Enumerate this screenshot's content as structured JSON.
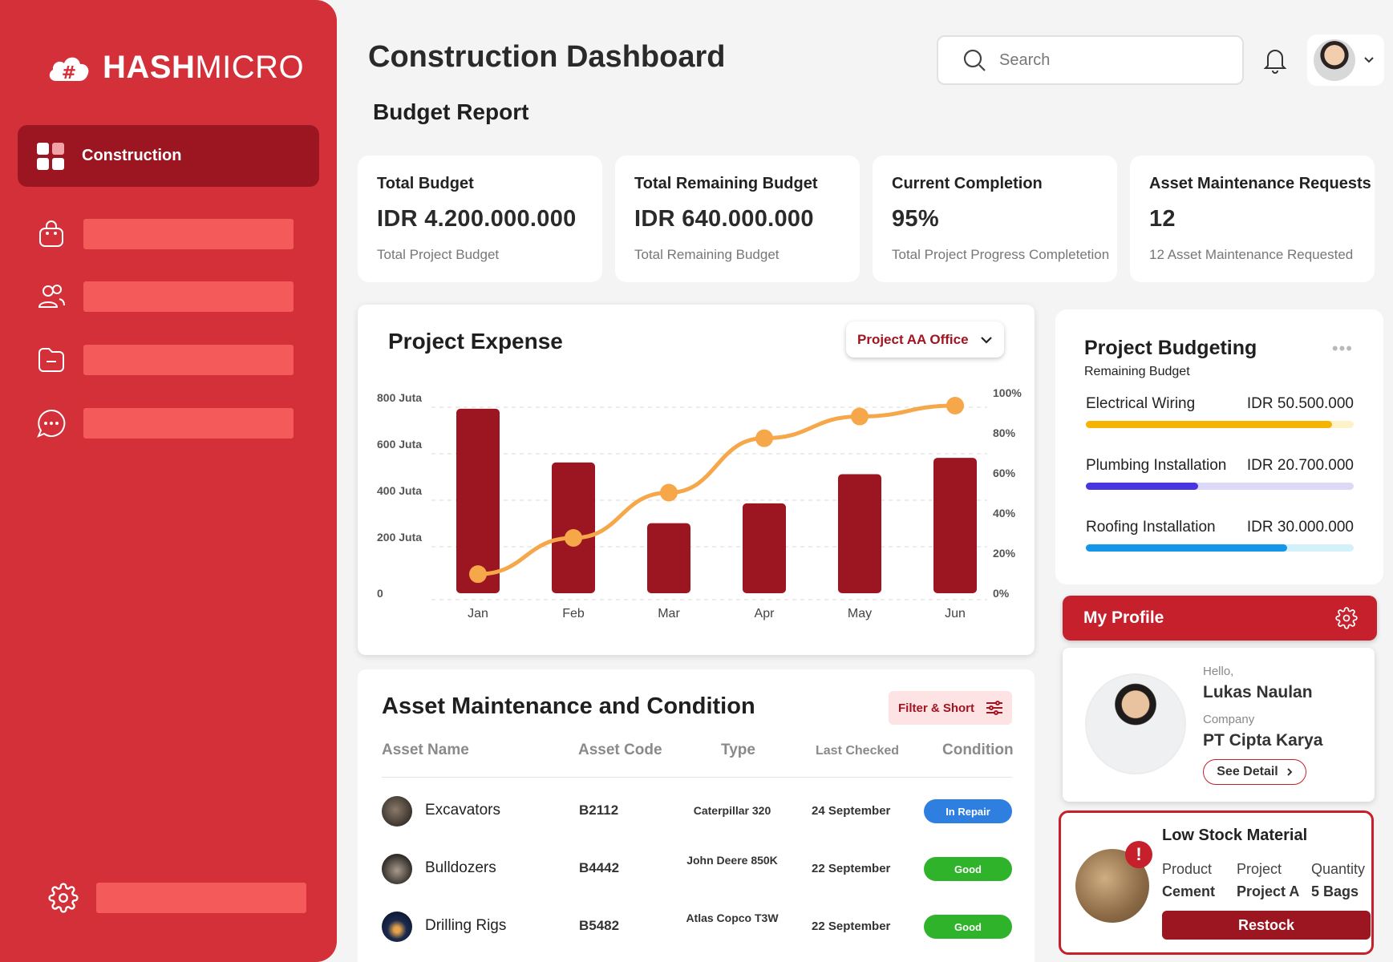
{
  "brand": {
    "name_bold": "HASH",
    "name_light": "MICRO"
  },
  "sidebar": {
    "active_item": "Construction"
  },
  "header": {
    "title": "Construction Dashboard",
    "search_placeholder": "Search"
  },
  "section_title": "Budget Report",
  "stats": [
    {
      "label": "Total Budget",
      "value": "IDR 4.200.000.000",
      "sub": "Total Project Budget"
    },
    {
      "label": "Total Remaining Budget",
      "value": "IDR 640.000.000",
      "sub": "Total Remaining Budget"
    },
    {
      "label": "Current Completion",
      "value": "95%",
      "sub": "Total Project Progress Completetion"
    },
    {
      "label": "Asset Maintenance Requests",
      "value": "12",
      "sub": "12 Asset Maintenance Requested"
    }
  ],
  "expense": {
    "title": "Project Expense",
    "dropdown": "Project AA Office"
  },
  "chart_data": {
    "type": "bar",
    "categories": [
      "Jan",
      "Feb",
      "Mar",
      "Apr",
      "May",
      "Jun"
    ],
    "series": [
      {
        "type": "bar",
        "axis": "left",
        "color": "#9b1620",
        "values": [
          790,
          560,
          300,
          385,
          510,
          580
        ]
      },
      {
        "type": "line",
        "axis": "right",
        "color": "#f5a74a",
        "values": [
          7,
          27,
          52,
          82,
          94,
          100
        ]
      }
    ],
    "y_left": {
      "ticks": [
        "0",
        "200 Juta",
        "400 Juta",
        "600 Juta",
        "800 Juta"
      ],
      "range": [
        0,
        800
      ]
    },
    "y_right": {
      "ticks": [
        "0%",
        "20%",
        "40%",
        "60%",
        "80%",
        "100%"
      ],
      "range": [
        0,
        100
      ]
    },
    "grid": true
  },
  "assets": {
    "title": "Asset Maintenance and Condition",
    "filter_label": "Filter & Short",
    "headers": [
      "Asset Name",
      "Asset Code",
      "Type",
      "Last Checked",
      "Condition"
    ],
    "rows": [
      {
        "name": "Excavators",
        "code": "B2112",
        "type": "Caterpillar 320",
        "checked": "24 September",
        "condition": "In Repair",
        "cond_color": "#2f7fe0"
      },
      {
        "name": "Bulldozers",
        "code": "B4442",
        "type": "John Deere 850K",
        "checked": "22 September",
        "condition": "Good",
        "cond_color": "#2fb32a"
      },
      {
        "name": "Drilling Rigs",
        "code": "B5482",
        "type": "Atlas Copco T3W",
        "checked": "22 September",
        "condition": "Good",
        "cond_color": "#2fb32a"
      }
    ]
  },
  "budgeting": {
    "title": "Project Budgeting",
    "subtitle": "Remaining Budget",
    "items": [
      {
        "name": "Electrical Wiring",
        "value": "IDR 50.500.000",
        "fraction": 0.92,
        "color": "#f5b400",
        "track": "#fdf2c8"
      },
      {
        "name": "Plumbing Installation",
        "value": "IDR 20.700.000",
        "fraction": 0.42,
        "color": "#4a36e0",
        "track": "#dcd8f7"
      },
      {
        "name": "Roofing Installation",
        "value": "IDR 30.000.000",
        "fraction": 0.75,
        "color": "#1596e8",
        "track": "#d3f1fb"
      }
    ]
  },
  "profile": {
    "header": "My Profile",
    "hello": "Hello,",
    "name": "Lukas Naulan",
    "company_label": "Company",
    "company": "PT Cipta Karya",
    "button": "See Detail"
  },
  "low_stock": {
    "title": "Low Stock Material",
    "headers": [
      "Product",
      "Project",
      "Quantity"
    ],
    "values": [
      "Cement",
      "Project A",
      "5 Bags"
    ],
    "button": "Restock"
  }
}
